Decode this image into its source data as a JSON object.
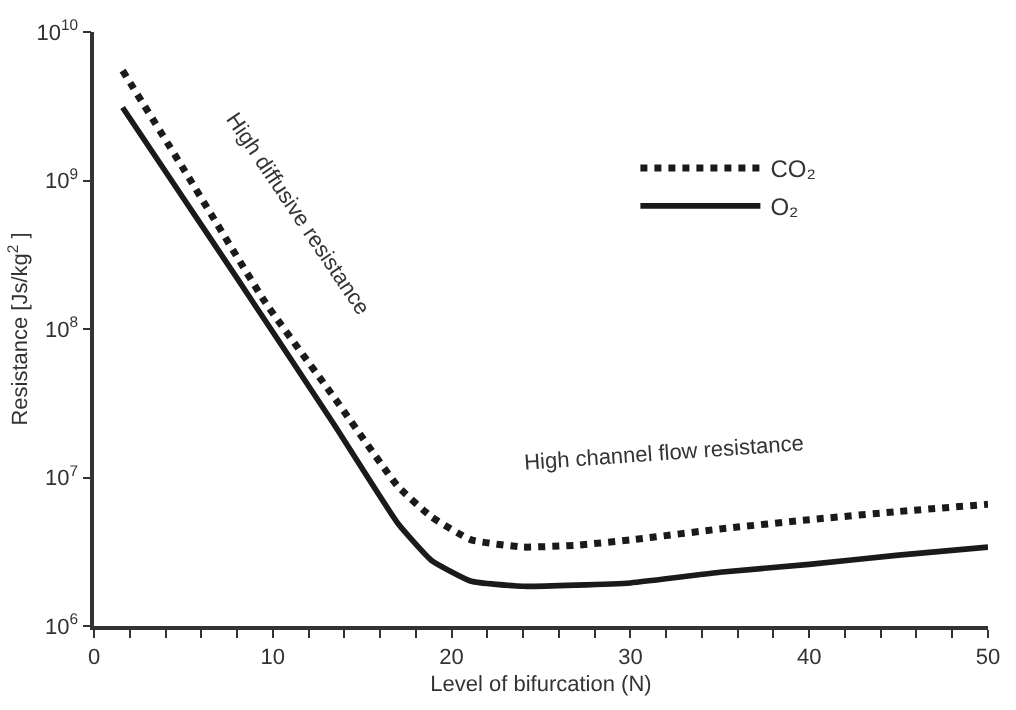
{
  "chart_data": {
    "type": "line",
    "xlabel": "Level of bifurcation (N)",
    "ylabel": "Resistance [Js/kg$^{2}$ ]",
    "log": "y",
    "grid": false,
    "legend": "top right",
    "marker": "none",
    "xlim": [
      0,
      50
    ],
    "xticks": [
      0,
      {
        "value": 2,
        "label": null
      },
      {
        "value": 4,
        "label": null
      },
      {
        "value": 6,
        "label": null
      },
      {
        "value": 8,
        "label": null
      },
      10,
      {
        "value": 12,
        "label": null
      },
      {
        "value": 14,
        "label": null
      },
      {
        "value": 16,
        "label": null
      },
      {
        "value": 18,
        "label": null
      },
      20,
      {
        "value": 22,
        "label": null
      },
      {
        "value": 24,
        "label": null
      },
      {
        "value": 26,
        "label": null
      },
      {
        "value": 28,
        "label": null
      },
      30,
      {
        "value": 32,
        "label": null
      },
      {
        "value": 34,
        "label": null
      },
      {
        "value": 36,
        "label": null
      },
      {
        "value": 38,
        "label": null
      },
      40,
      {
        "value": 42,
        "label": null
      },
      {
        "value": 44,
        "label": null
      },
      {
        "value": 46,
        "label": null
      },
      {
        "value": 48,
        "label": null
      },
      50
    ],
    "ylim": [
      1000000,
      10000000000
    ],
    "yticks": [
      {
        "value": 1000000,
        "label": "10$^{6}$"
      },
      {
        "value": 10000000,
        "label": "10$^{7}$"
      },
      {
        "value": 100000000,
        "label": "10$^{8}$"
      },
      {
        "value": 1000000000,
        "label": "10$^{9}$"
      },
      {
        "value": 10000000000,
        "label": "10$^{10}$"
      }
    ],
    "series": [
      {
        "name": "CO₂",
        "color": "#1a1a1a",
        "line_style": "dotted",
        "x": [
          1.6,
          5,
          9.6,
          13.4,
          17,
          18.9,
          21.1,
          24,
          27,
          30,
          35,
          40,
          45,
          50
        ],
        "values": [
          5500000000,
          1200000000,
          150000000,
          35000000,
          8700000,
          5400000,
          3800000,
          3400000,
          3500000,
          3800000,
          4500000,
          5200000,
          5900000,
          6600000
        ]
      },
      {
        "name": "O₂",
        "color": "#1a1a1a",
        "line_style": "solid",
        "x": [
          1.6,
          5,
          8,
          13.4,
          17,
          18.9,
          21.1,
          24,
          30,
          35,
          40,
          45,
          50
        ],
        "values": [
          3100000000,
          760000000,
          220000000,
          23000000,
          4900000,
          2750000,
          2000000,
          1850000,
          1950000,
          2300000,
          2600000,
          3000000,
          3400000
        ]
      }
    ],
    "annotations": [
      "High diffusive resistance",
      "High channel flow resistance"
    ]
  }
}
